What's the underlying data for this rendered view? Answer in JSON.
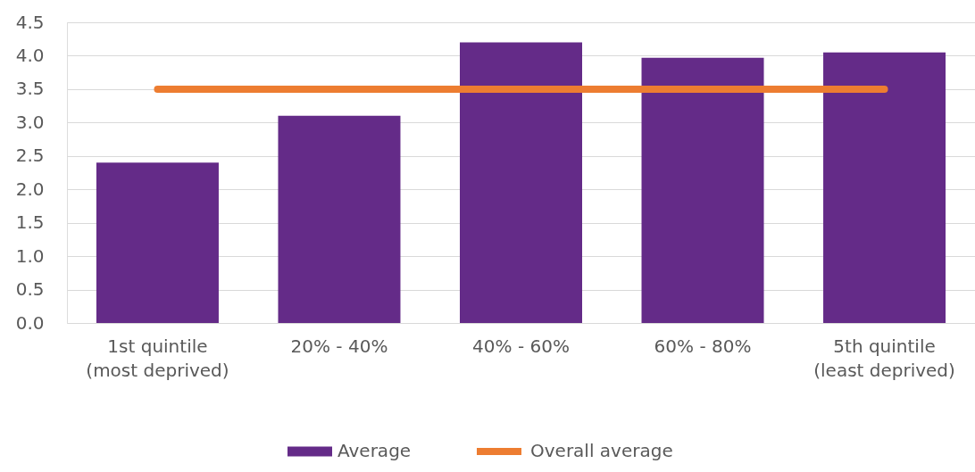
{
  "chart_data": {
    "type": "bar",
    "categories": [
      "1st quintile (most deprived)",
      "20% - 40%",
      "40% - 60%",
      "60% - 80%",
      "5th quintile (least deprived)"
    ],
    "series": [
      {
        "name": "Average",
        "type": "bar",
        "color": "#642b88",
        "values": [
          2.4,
          3.1,
          4.2,
          3.97,
          4.05
        ]
      },
      {
        "name": "Overall average",
        "type": "line",
        "color": "#ed7d31",
        "values": [
          3.5,
          3.5,
          3.5,
          3.5,
          3.5
        ]
      }
    ],
    "ylim": [
      0,
      4.5
    ],
    "yticks": [
      {
        "value": 0,
        "label": "0.0"
      },
      0.5,
      {
        "value": 1,
        "label": "1.0"
      },
      1.5,
      {
        "value": 2,
        "label": "2.0"
      },
      2.5,
      {
        "value": 3,
        "label": "3.0"
      },
      3.5,
      {
        "value": 4,
        "label": "4.0"
      },
      4.5
    ],
    "grid": "y",
    "legend": "bottom"
  }
}
